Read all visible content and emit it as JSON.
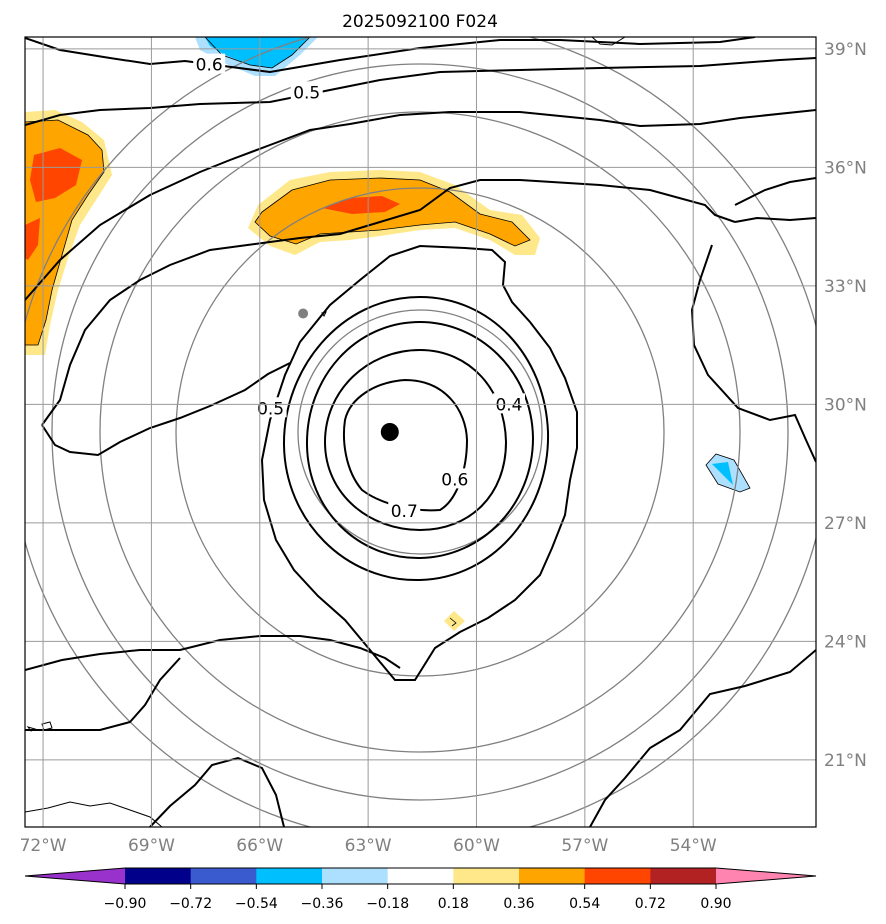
{
  "title": "2025092100 F024",
  "map": {
    "lon_range": [
      -72.5,
      -50.6
    ],
    "lat_range": [
      19.3,
      39.3
    ],
    "lon_ticks": [
      -72,
      -69,
      -66,
      -63,
      -60,
      -57,
      -54
    ],
    "lon_tick_labels": [
      "72°W",
      "69°W",
      "66°W",
      "63°W",
      "60°W",
      "57°W",
      "54°W"
    ],
    "lat_ticks": [
      21,
      24,
      27,
      30,
      33,
      36,
      39
    ],
    "lat_tick_labels": [
      "21°N",
      "24°N",
      "27°N",
      "30°N",
      "33°N",
      "36°N",
      "39°N"
    ],
    "gridlines": true,
    "center_marker": {
      "lon": -62.4,
      "lat": 29.3
    },
    "secondary_marker": {
      "lon": -64.8,
      "lat": 32.3
    },
    "range_rings_count": 5
  },
  "contour_labels": [
    {
      "text": "0.6",
      "lon": -67.4,
      "lat": 38.6
    },
    {
      "text": "0.5",
      "lon": -64.7,
      "lat": 37.9
    },
    {
      "text": "0.5",
      "lon": -65.7,
      "lat": 29.9
    },
    {
      "text": "0.4",
      "lon": -59.1,
      "lat": 30.0
    },
    {
      "text": "0.6",
      "lon": -60.6,
      "lat": 28.1
    },
    {
      "text": "0.7",
      "lon": -62.0,
      "lat": 27.3
    }
  ],
  "colorbar": {
    "colors": [
      "#9932CC",
      "#00008B",
      "#3A5BCF",
      "#00BFFF",
      "#ADE0FF",
      "#FFFFFF",
      "#FFE88A",
      "#FFA500",
      "#FF4500",
      "#B22222",
      "#FF85B0"
    ],
    "tick_labels": [
      "−0.90",
      "−0.72",
      "−0.54",
      "−0.36",
      "−0.18",
      "0.18",
      "0.36",
      "0.54",
      "0.72",
      "0.90"
    ]
  }
}
